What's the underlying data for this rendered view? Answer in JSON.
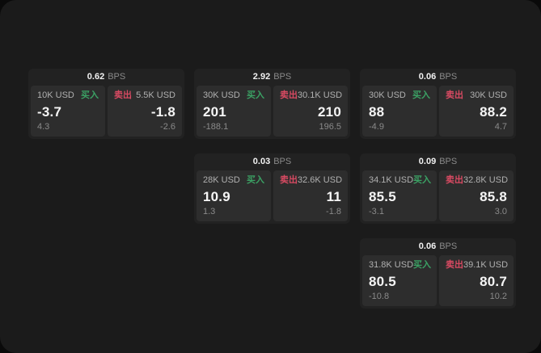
{
  "labels": {
    "buy": "买入",
    "sell": "卖出",
    "bps_unit": "BPS"
  },
  "colors": {
    "buy_green": "#3ba164",
    "sell_red": "#d84a62",
    "window_bg": "#1b1b1b",
    "card_bg": "#222222",
    "panel_bg": "#2d2d2d"
  },
  "cards": [
    {
      "row": 0,
      "col": 0,
      "bps": "0.62",
      "buy": {
        "amount": "10K USD",
        "value": "-3.7",
        "delta": "4.3"
      },
      "sell": {
        "amount": "5.5K USD",
        "value": "-1.8",
        "delta": "-2.6"
      }
    },
    {
      "row": 0,
      "col": 1,
      "bps": "2.92",
      "buy": {
        "amount": "30K USD",
        "value": "201",
        "delta": "-188.1"
      },
      "sell": {
        "amount": "30.1K USD",
        "value": "210",
        "delta": "196.5"
      }
    },
    {
      "row": 0,
      "col": 2,
      "bps": "0.06",
      "buy": {
        "amount": "30K USD",
        "value": "88",
        "delta": "-4.9"
      },
      "sell": {
        "amount": "30K USD",
        "value": "88.2",
        "delta": "4.7"
      }
    },
    {
      "row": 1,
      "col": 1,
      "bps": "0.03",
      "buy": {
        "amount": "28K USD",
        "value": "10.9",
        "delta": "1.3"
      },
      "sell": {
        "amount": "32.6K USD",
        "value": "11",
        "delta": "-1.8"
      }
    },
    {
      "row": 1,
      "col": 2,
      "bps": "0.09",
      "buy": {
        "amount": "34.1K USD",
        "value": "85.5",
        "delta": "-3.1"
      },
      "sell": {
        "amount": "32.8K USD",
        "value": "85.8",
        "delta": "3.0"
      }
    },
    {
      "row": 2,
      "col": 2,
      "bps": "0.06",
      "buy": {
        "amount": "31.8K USD",
        "value": "80.5",
        "delta": "-10.8"
      },
      "sell": {
        "amount": "39.1K USD",
        "value": "80.7",
        "delta": "10.2"
      }
    }
  ]
}
